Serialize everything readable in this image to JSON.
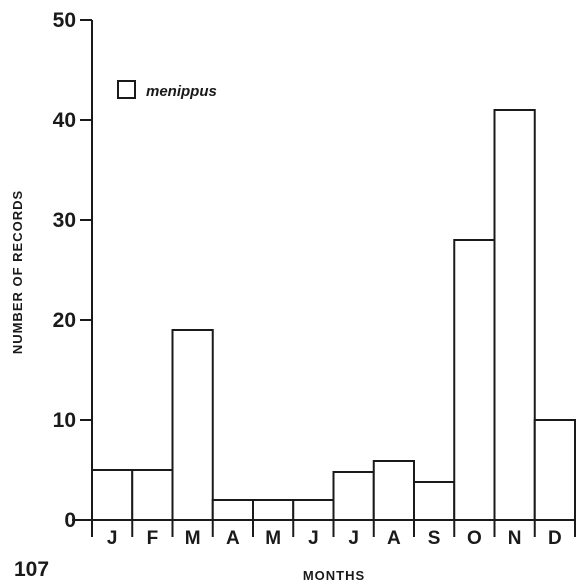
{
  "page_number": "107",
  "chart_data": {
    "type": "bar",
    "categories": [
      "J",
      "F",
      "M",
      "A",
      "M",
      "J",
      "J",
      "A",
      "S",
      "O",
      "N",
      "D"
    ],
    "series": [
      {
        "name": "menippus",
        "values": [
          5,
          5,
          19,
          2,
          2,
          2,
          4.8,
          5.9,
          3.8,
          28,
          41,
          10
        ]
      }
    ],
    "title": "",
    "xlabel": "MONTHS",
    "ylabel": "NUMBER OF RECORDS",
    "ylim": [
      0,
      50
    ],
    "yticks": [
      0,
      10,
      20,
      30,
      40,
      50
    ],
    "grid": false,
    "legend": "top-left",
    "colors": {
      "bar_fill": "#ffffff",
      "bar_stroke": "#1a1a1a",
      "axis": "#1a1a1a",
      "text": "#1a1a1a"
    }
  }
}
